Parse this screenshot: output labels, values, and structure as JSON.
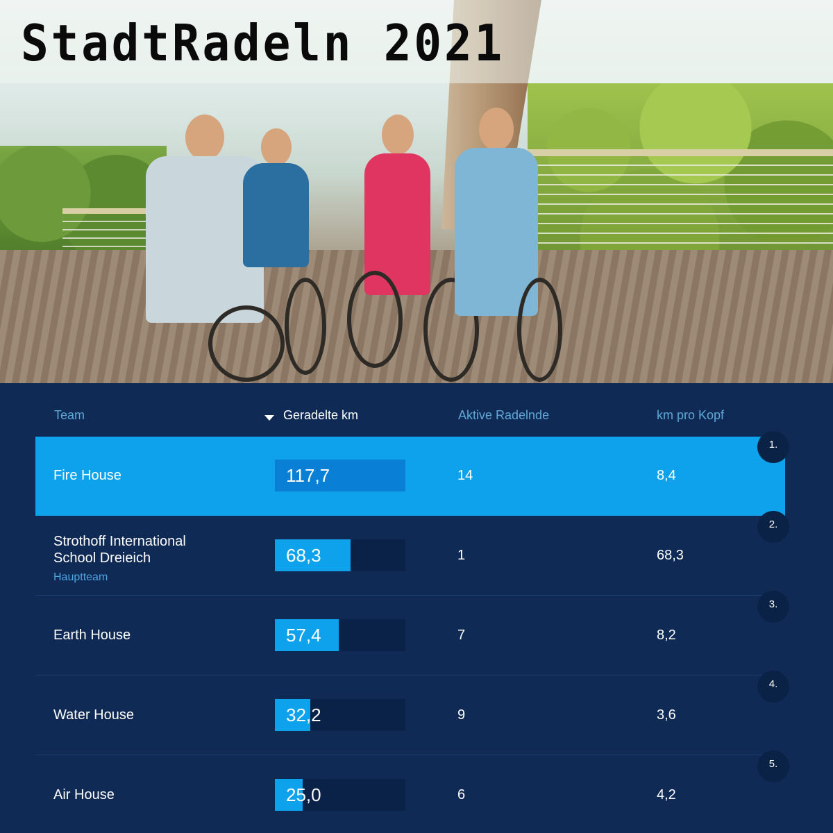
{
  "title": "StadtRadeln 2021",
  "table": {
    "headers": {
      "team": "Team",
      "km": "Geradelte km",
      "active": "Aktive Radelnde",
      "per_head": "km pro Kopf"
    },
    "sort_column": "km",
    "max_km": 117.7,
    "rows": [
      {
        "rank": "1.",
        "team": "Fire House",
        "subtitle": "",
        "km": "117,7",
        "km_value": 117.7,
        "active": "14",
        "per_head": "8,4",
        "highlighted": true
      },
      {
        "rank": "2.",
        "team": "Strothoff International School Dreieich",
        "subtitle": "Hauptteam",
        "km": "68,3",
        "km_value": 68.3,
        "active": "1",
        "per_head": "68,3",
        "highlighted": false
      },
      {
        "rank": "3.",
        "team": "Earth House",
        "subtitle": "",
        "km": "57,4",
        "km_value": 57.4,
        "active": "7",
        "per_head": "8,2",
        "highlighted": false
      },
      {
        "rank": "4.",
        "team": "Water House",
        "subtitle": "",
        "km": "32,2",
        "km_value": 32.2,
        "active": "9",
        "per_head": "3,6",
        "highlighted": false
      },
      {
        "rank": "5.",
        "team": "Air House",
        "subtitle": "",
        "km": "25,0",
        "km_value": 25.0,
        "active": "6",
        "per_head": "4,2",
        "highlighted": false
      }
    ]
  },
  "colors": {
    "background": "#0f2a55",
    "highlight_row": "#0ea2ec",
    "bar_fill": "#0ea2ec",
    "header_text": "#5fa8d8"
  }
}
